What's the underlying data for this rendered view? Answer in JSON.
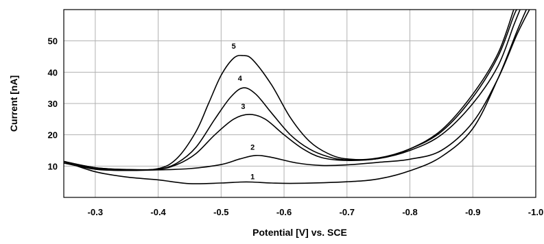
{
  "chart_data": {
    "type": "line",
    "title": "",
    "xlabel": "Potential [V] vs. SCE",
    "ylabel": "Current [nA]",
    "x_reversed": true,
    "xlim": [
      -0.25,
      -1.0
    ],
    "ylim": [
      0,
      60
    ],
    "x_ticks": [
      -0.3,
      -0.4,
      -0.5,
      -0.6,
      -0.7,
      -0.8,
      -0.9,
      -1.0
    ],
    "x_tick_labels": [
      "-0.3",
      "-0.4",
      "-0.5",
      "-0.6",
      "-0.7",
      "-0.8",
      "-0.9",
      "-1.0"
    ],
    "y_ticks": [
      10,
      20,
      30,
      40,
      50
    ],
    "y_tick_labels": [
      "10",
      "20",
      "30",
      "40",
      "50"
    ],
    "grid": true,
    "legend": "none",
    "series_color": "#000000",
    "grid_color": "#b0b0b0",
    "series": [
      {
        "name": "1",
        "label_at": [
          -0.55,
          5.8
        ],
        "points": [
          [
            -0.25,
            11.5
          ],
          [
            -0.3,
            8.2
          ],
          [
            -0.35,
            6.5
          ],
          [
            -0.4,
            5.6
          ],
          [
            -0.45,
            4.4
          ],
          [
            -0.5,
            4.6
          ],
          [
            -0.53,
            4.9
          ],
          [
            -0.55,
            4.9
          ],
          [
            -0.58,
            4.6
          ],
          [
            -0.62,
            4.5
          ],
          [
            -0.7,
            5.0
          ],
          [
            -0.75,
            5.9
          ],
          [
            -0.8,
            8.5
          ],
          [
            -0.85,
            13.0
          ],
          [
            -0.9,
            22.0
          ],
          [
            -0.94,
            38.0
          ],
          [
            -0.97,
            53.0
          ],
          [
            -0.985,
            60.0
          ]
        ]
      },
      {
        "name": "2",
        "label_at": [
          -0.55,
          15.2
        ],
        "points": [
          [
            -0.25,
            11.0
          ],
          [
            -0.3,
            9.0
          ],
          [
            -0.35,
            8.6
          ],
          [
            -0.4,
            8.8
          ],
          [
            -0.45,
            9.2
          ],
          [
            -0.5,
            10.5
          ],
          [
            -0.53,
            12.3
          ],
          [
            -0.555,
            13.4
          ],
          [
            -0.58,
            12.8
          ],
          [
            -0.62,
            11.0
          ],
          [
            -0.66,
            10.2
          ],
          [
            -0.7,
            10.4
          ],
          [
            -0.75,
            11.2
          ],
          [
            -0.8,
            12.2
          ],
          [
            -0.85,
            15.0
          ],
          [
            -0.9,
            24.0
          ],
          [
            -0.94,
            38.0
          ],
          [
            -0.97,
            52.0
          ],
          [
            -0.99,
            60.0
          ]
        ]
      },
      {
        "name": "3",
        "label_at": [
          -0.535,
          28.2
        ],
        "points": [
          [
            -0.25,
            11.5
          ],
          [
            -0.3,
            9.5
          ],
          [
            -0.35,
            8.9
          ],
          [
            -0.4,
            9.0
          ],
          [
            -0.43,
            10.5
          ],
          [
            -0.46,
            14.0
          ],
          [
            -0.49,
            20.0
          ],
          [
            -0.52,
            25.0
          ],
          [
            -0.545,
            26.5
          ],
          [
            -0.57,
            25.0
          ],
          [
            -0.6,
            20.0
          ],
          [
            -0.63,
            15.5
          ],
          [
            -0.66,
            12.7
          ],
          [
            -0.7,
            11.8
          ],
          [
            -0.75,
            12.4
          ],
          [
            -0.8,
            15.0
          ],
          [
            -0.85,
            20.0
          ],
          [
            -0.9,
            30.0
          ],
          [
            -0.94,
            42.0
          ],
          [
            -0.965,
            55.0
          ],
          [
            -0.975,
            60.0
          ]
        ]
      },
      {
        "name": "4",
        "label_at": [
          -0.53,
          37.2
        ],
        "points": [
          [
            -0.25,
            11.5
          ],
          [
            -0.3,
            9.5
          ],
          [
            -0.35,
            8.9
          ],
          [
            -0.4,
            9.0
          ],
          [
            -0.43,
            11.0
          ],
          [
            -0.46,
            16.0
          ],
          [
            -0.49,
            25.0
          ],
          [
            -0.515,
            32.0
          ],
          [
            -0.535,
            35.0
          ],
          [
            -0.555,
            33.0
          ],
          [
            -0.58,
            27.0
          ],
          [
            -0.61,
            20.0
          ],
          [
            -0.64,
            15.5
          ],
          [
            -0.67,
            13.0
          ],
          [
            -0.7,
            12.0
          ],
          [
            -0.75,
            12.6
          ],
          [
            -0.8,
            15.5
          ],
          [
            -0.85,
            21.0
          ],
          [
            -0.9,
            32.0
          ],
          [
            -0.94,
            45.0
          ],
          [
            -0.965,
            58.0
          ],
          [
            -0.97,
            60.0
          ]
        ]
      },
      {
        "name": "5",
        "label_at": [
          -0.52,
          47.5
        ],
        "points": [
          [
            -0.25,
            11.0
          ],
          [
            -0.3,
            9.3
          ],
          [
            -0.35,
            8.8
          ],
          [
            -0.4,
            9.2
          ],
          [
            -0.43,
            12.5
          ],
          [
            -0.46,
            21.0
          ],
          [
            -0.48,
            30.0
          ],
          [
            -0.5,
            39.0
          ],
          [
            -0.52,
            44.5
          ],
          [
            -0.535,
            45.3
          ],
          [
            -0.55,
            44.0
          ],
          [
            -0.58,
            36.0
          ],
          [
            -0.61,
            25.5
          ],
          [
            -0.64,
            18.0
          ],
          [
            -0.67,
            14.0
          ],
          [
            -0.7,
            12.3
          ],
          [
            -0.75,
            12.4
          ],
          [
            -0.8,
            15.5
          ],
          [
            -0.85,
            21.5
          ],
          [
            -0.9,
            33.0
          ],
          [
            -0.94,
            46.0
          ],
          [
            -0.965,
            60.0
          ]
        ]
      }
    ]
  }
}
